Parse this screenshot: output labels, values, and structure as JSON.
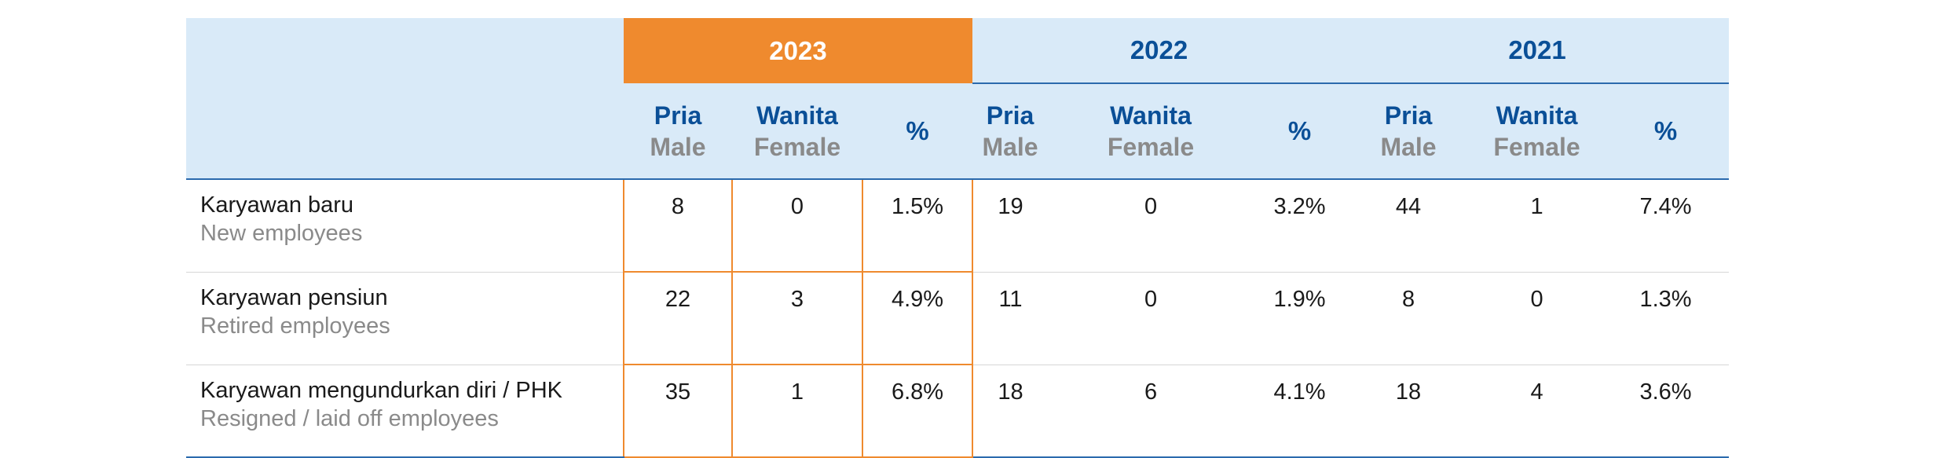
{
  "table": {
    "years": [
      {
        "label": "2023",
        "current": true
      },
      {
        "label": "2022",
        "current": false
      },
      {
        "label": "2021",
        "current": false
      }
    ],
    "subheaders": {
      "male_id": "Pria",
      "male_en": "Male",
      "female_id": "Wanita",
      "female_en": "Female",
      "percent": "%"
    },
    "rows": [
      {
        "label_id": "Karyawan baru",
        "label_en": "New employees",
        "values": [
          {
            "male": "8",
            "female": "0",
            "percent": "1.5%"
          },
          {
            "male": "19",
            "female": "0",
            "percent": "3.2%"
          },
          {
            "male": "44",
            "female": "1",
            "percent": "7.4%"
          }
        ]
      },
      {
        "label_id": "Karyawan pensiun",
        "label_en": "Retired employees",
        "values": [
          {
            "male": "22",
            "female": "3",
            "percent": "4.9%"
          },
          {
            "male": "11",
            "female": "0",
            "percent": "1.9%"
          },
          {
            "male": "8",
            "female": "0",
            "percent": "1.3%"
          }
        ]
      },
      {
        "label_id": "Karyawan mengundurkan diri / PHK",
        "label_en": "Resigned / laid off employees",
        "values": [
          {
            "male": "35",
            "female": "1",
            "percent": "6.8%"
          },
          {
            "male": "18",
            "female": "6",
            "percent": "4.1%"
          },
          {
            "male": "18",
            "female": "4",
            "percent": "3.6%"
          }
        ]
      }
    ],
    "colors": {
      "header_bg": "#d9eaf8",
      "current_year_bg": "#ef8a2e",
      "accent_blue": "#0a4f97",
      "muted_gray": "#8a8a8a"
    }
  }
}
